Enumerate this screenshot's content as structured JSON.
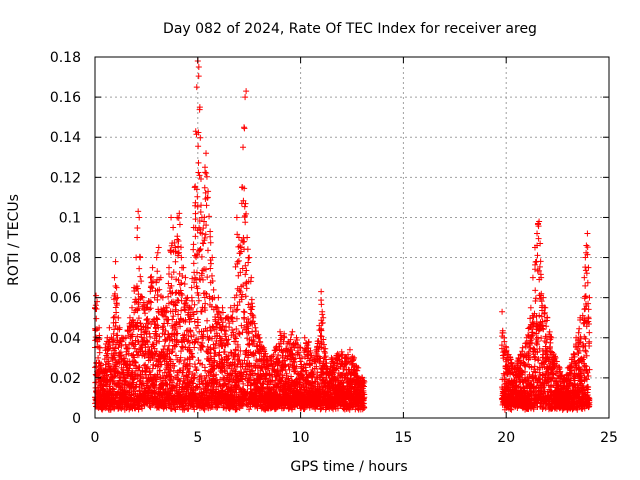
{
  "chart_data": {
    "type": "scatter",
    "title": "Day 082 of 2024, Rate Of TEC Index for receiver areg",
    "xlabel": "GPS time / hours",
    "ylabel": "ROTI / TECUs",
    "xlim": [
      0,
      25
    ],
    "ylim": [
      0,
      0.18
    ],
    "xticks": [
      "0",
      "5",
      "10",
      "15",
      "20",
      "25"
    ],
    "yticks": [
      "0",
      "0.02",
      "0.04",
      "0.06",
      "0.08",
      "0.1",
      "0.12",
      "0.14",
      "0.16",
      "0.18"
    ],
    "grid": true,
    "marker": "+",
    "marker_color": "#ff0000",
    "series_points": [
      [
        0.0,
        0.055
      ],
      [
        0.05,
        0.061
      ],
      [
        0.1,
        0.058
      ],
      [
        0.15,
        0.03
      ],
      [
        0.2,
        0.045
      ],
      [
        0.3,
        0.025
      ],
      [
        0.4,
        0.02
      ],
      [
        0.5,
        0.035
      ],
      [
        0.6,
        0.04
      ],
      [
        0.7,
        0.045
      ],
      [
        0.8,
        0.04
      ],
      [
        0.9,
        0.05
      ],
      [
        0.95,
        0.07
      ],
      [
        1.0,
        0.078
      ],
      [
        1.05,
        0.065
      ],
      [
        1.1,
        0.06
      ],
      [
        1.2,
        0.045
      ],
      [
        1.3,
        0.04
      ],
      [
        1.5,
        0.04
      ],
      [
        1.7,
        0.05
      ],
      [
        1.8,
        0.055
      ],
      [
        1.9,
        0.065
      ],
      [
        2.0,
        0.08
      ],
      [
        2.05,
        0.09
      ],
      [
        2.1,
        0.103
      ],
      [
        2.15,
        0.1
      ],
      [
        2.2,
        0.08
      ],
      [
        2.3,
        0.06
      ],
      [
        2.5,
        0.055
      ],
      [
        2.7,
        0.07
      ],
      [
        2.8,
        0.075
      ],
      [
        2.9,
        0.06
      ],
      [
        3.0,
        0.08
      ],
      [
        3.1,
        0.085
      ],
      [
        3.2,
        0.07
      ],
      [
        3.3,
        0.06
      ],
      [
        3.5,
        0.055
      ],
      [
        3.6,
        0.075
      ],
      [
        3.7,
        0.1
      ],
      [
        3.8,
        0.095
      ],
      [
        3.9,
        0.085
      ],
      [
        4.0,
        0.1
      ],
      [
        4.1,
        0.102
      ],
      [
        4.2,
        0.08
      ],
      [
        4.3,
        0.075
      ],
      [
        4.4,
        0.07
      ],
      [
        4.5,
        0.06
      ],
      [
        4.6,
        0.055
      ],
      [
        4.7,
        0.065
      ],
      [
        4.8,
        0.095
      ],
      [
        4.85,
        0.115
      ],
      [
        4.9,
        0.143
      ],
      [
        4.95,
        0.165
      ],
      [
        5.0,
        0.178
      ],
      [
        5.05,
        0.175
      ],
      [
        5.1,
        0.155
      ],
      [
        5.2,
        0.1
      ],
      [
        5.3,
        0.098
      ],
      [
        5.35,
        0.125
      ],
      [
        5.4,
        0.132
      ],
      [
        5.5,
        0.113
      ],
      [
        5.6,
        0.093
      ],
      [
        5.7,
        0.08
      ],
      [
        5.8,
        0.06
      ],
      [
        5.9,
        0.055
      ],
      [
        6.0,
        0.06
      ],
      [
        6.1,
        0.05
      ],
      [
        6.2,
        0.055
      ],
      [
        6.4,
        0.05
      ],
      [
        6.6,
        0.055
      ],
      [
        6.8,
        0.06
      ],
      [
        6.9,
        0.1
      ],
      [
        7.0,
        0.09
      ],
      [
        7.1,
        0.085
      ],
      [
        7.15,
        0.115
      ],
      [
        7.2,
        0.135
      ],
      [
        7.25,
        0.145
      ],
      [
        7.3,
        0.16
      ],
      [
        7.35,
        0.163
      ],
      [
        7.4,
        0.09
      ],
      [
        7.5,
        0.08
      ],
      [
        7.6,
        0.07
      ],
      [
        7.7,
        0.05
      ],
      [
        7.8,
        0.045
      ],
      [
        8.0,
        0.04
      ],
      [
        8.2,
        0.035
      ],
      [
        8.5,
        0.03
      ],
      [
        8.8,
        0.035
      ],
      [
        9.0,
        0.043
      ],
      [
        9.2,
        0.042
      ],
      [
        9.4,
        0.038
      ],
      [
        9.6,
        0.043
      ],
      [
        9.8,
        0.04
      ],
      [
        10.0,
        0.035
      ],
      [
        10.2,
        0.04
      ],
      [
        10.4,
        0.038
      ],
      [
        10.6,
        0.03
      ],
      [
        10.8,
        0.035
      ],
      [
        11.0,
        0.063
      ],
      [
        11.05,
        0.053
      ],
      [
        11.1,
        0.05
      ],
      [
        11.3,
        0.025
      ],
      [
        11.5,
        0.03
      ],
      [
        11.8,
        0.032
      ],
      [
        12.0,
        0.033
      ],
      [
        12.2,
        0.03
      ],
      [
        12.4,
        0.034
      ],
      [
        12.6,
        0.03
      ],
      [
        12.8,
        0.025
      ],
      [
        13.0,
        0.02
      ],
      [
        13.1,
        0.018
      ],
      [
        19.8,
        0.053
      ],
      [
        19.9,
        0.04
      ],
      [
        20.0,
        0.035
      ],
      [
        20.2,
        0.03
      ],
      [
        20.4,
        0.025
      ],
      [
        20.6,
        0.03
      ],
      [
        20.8,
        0.035
      ],
      [
        21.0,
        0.04
      ],
      [
        21.2,
        0.055
      ],
      [
        21.3,
        0.07
      ],
      [
        21.4,
        0.085
      ],
      [
        21.5,
        0.092
      ],
      [
        21.55,
        0.097
      ],
      [
        21.6,
        0.098
      ],
      [
        21.65,
        0.087
      ],
      [
        21.7,
        0.07
      ],
      [
        21.8,
        0.06
      ],
      [
        21.9,
        0.055
      ],
      [
        22.0,
        0.05
      ],
      [
        22.2,
        0.04
      ],
      [
        22.4,
        0.03
      ],
      [
        22.6,
        0.025
      ],
      [
        22.8,
        0.02
      ],
      [
        23.0,
        0.025
      ],
      [
        23.2,
        0.03
      ],
      [
        23.4,
        0.04
      ],
      [
        23.6,
        0.05
      ],
      [
        23.8,
        0.07
      ],
      [
        23.85,
        0.08
      ],
      [
        23.9,
        0.086
      ],
      [
        23.95,
        0.092
      ],
      [
        24.0,
        0.075
      ],
      [
        24.05,
        0.06
      ]
    ]
  }
}
